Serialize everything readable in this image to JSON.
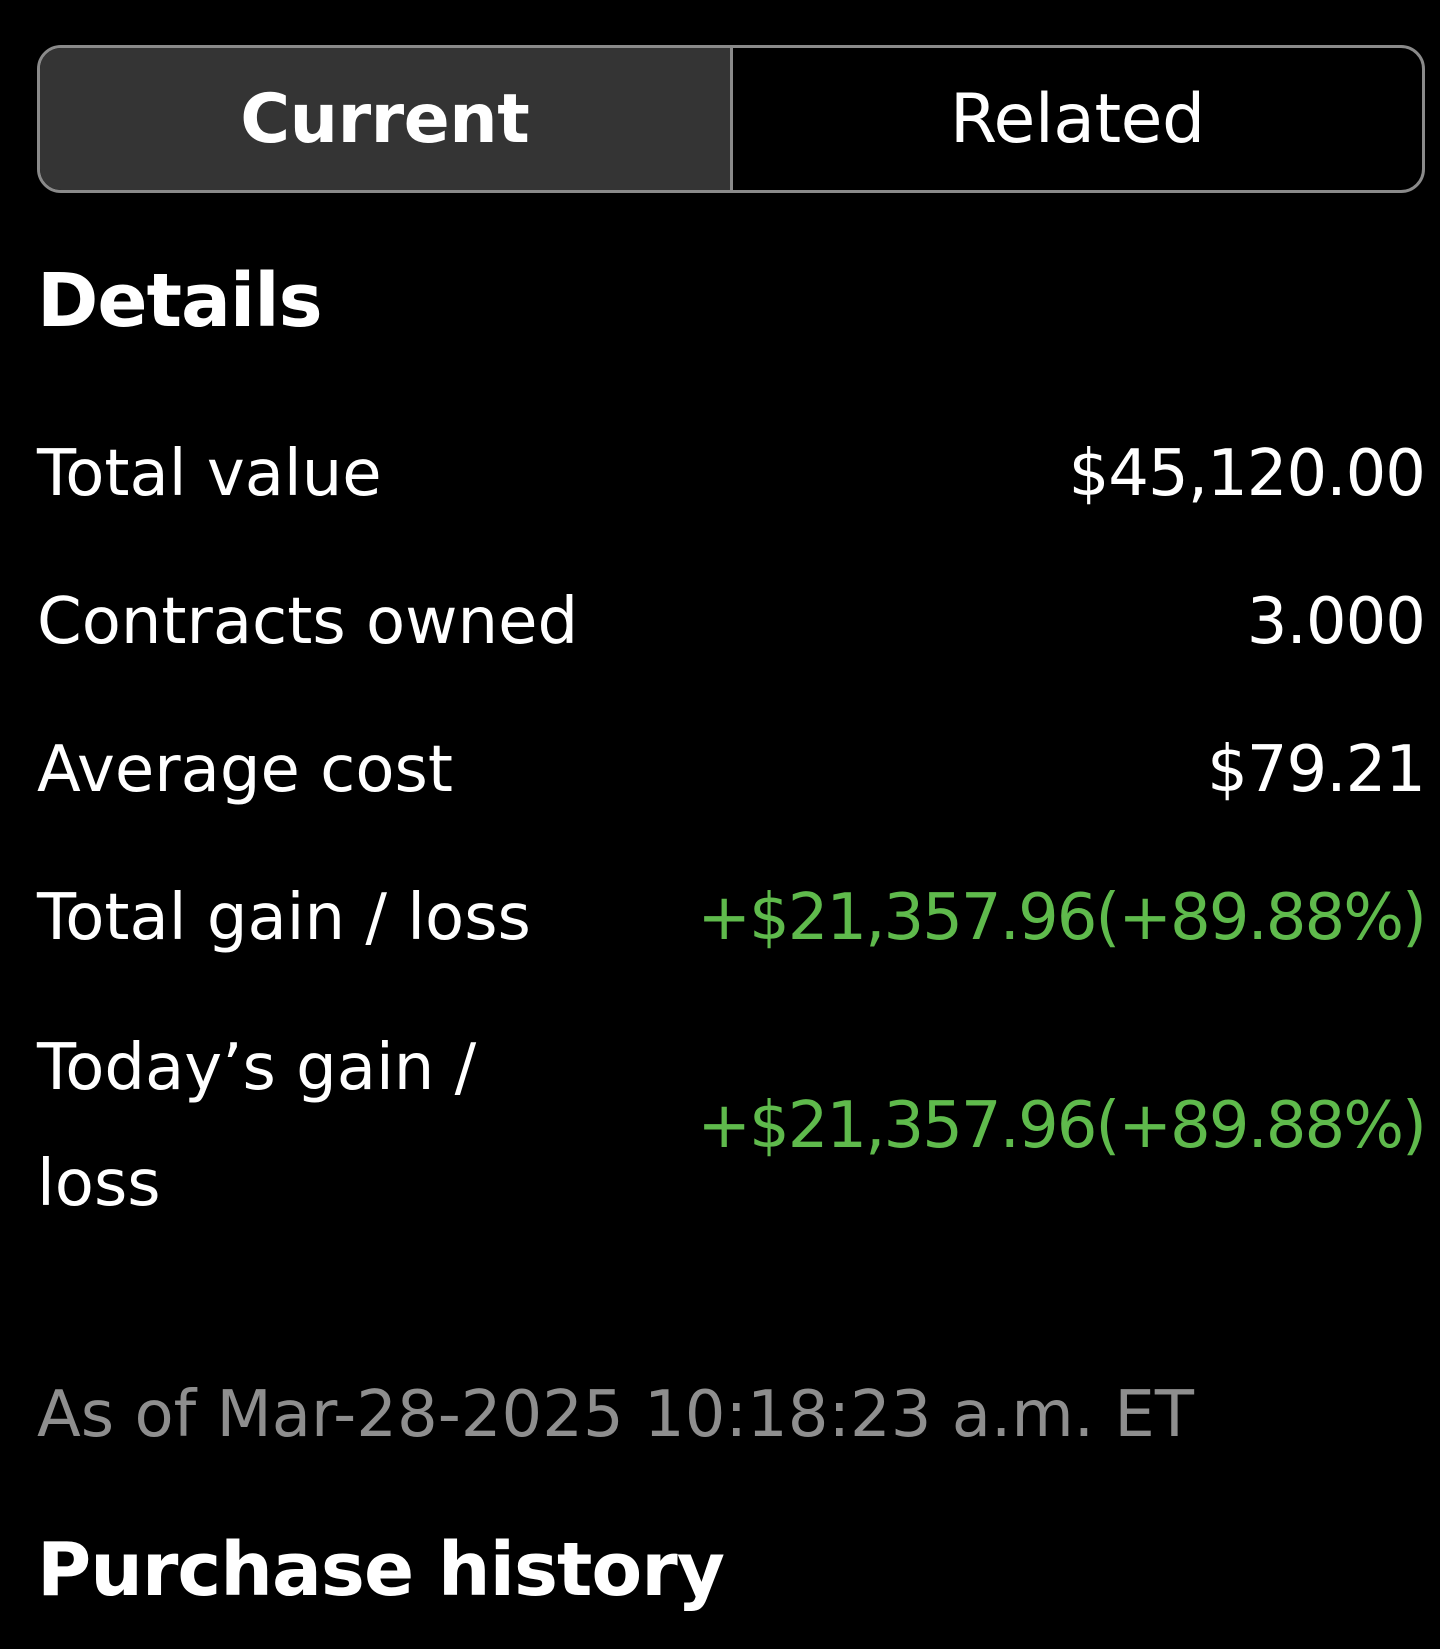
{
  "tabs": {
    "current_label": "Current",
    "related_label": "Related"
  },
  "details": {
    "title": "Details",
    "rows": [
      {
        "label": "Total value",
        "value": "$45,120.00"
      },
      {
        "label": "Contracts owned",
        "value": "3.000"
      },
      {
        "label": "Average cost",
        "value": "$79.21"
      },
      {
        "label": "Total gain / loss",
        "value": "+$21,357.96(+89.88%)"
      },
      {
        "label": "Today’s gain / loss",
        "value": "+$21,357.96(+89.88%)"
      }
    ],
    "as_of": "As of Mar-28-2025 10:18:23 a.m. ET"
  },
  "purchase_history": {
    "title": "Purchase history"
  },
  "colors": {
    "gain": "#5fba4c",
    "muted_text": "#8e8e8e",
    "tab_active_bg": "#343434"
  }
}
